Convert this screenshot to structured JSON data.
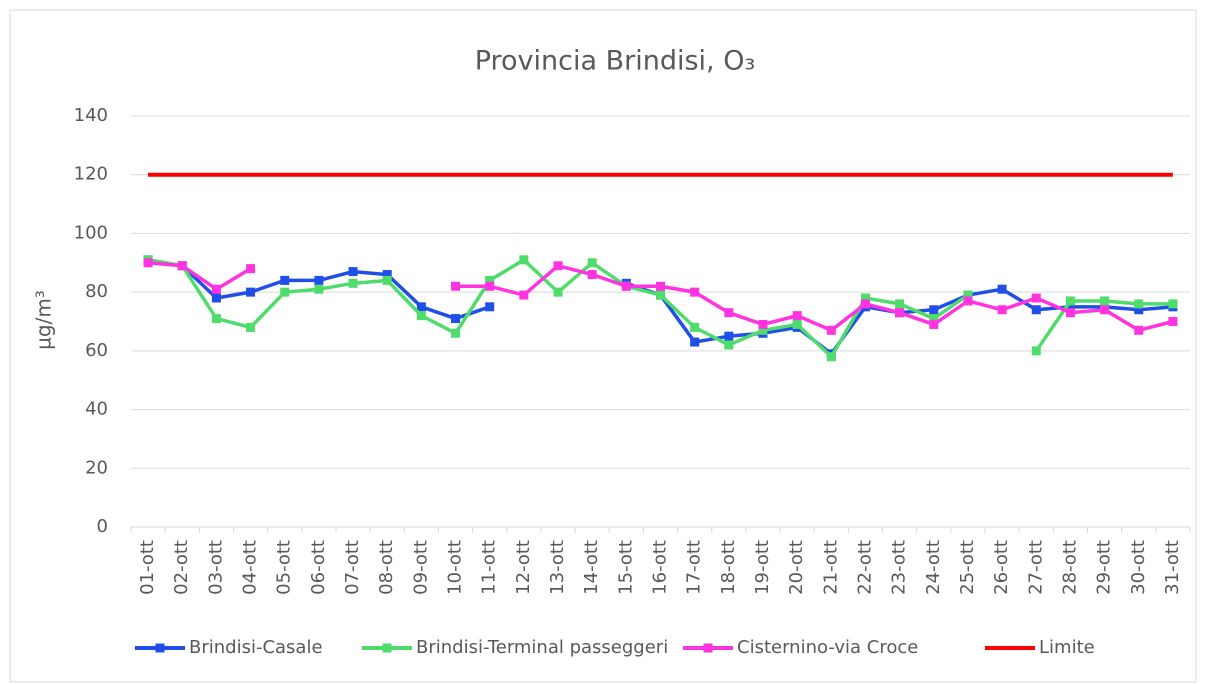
{
  "chart_data": {
    "type": "line",
    "title": "Provincia Brindisi, O₃",
    "y_label": "µg/m³",
    "categories": [
      "01-ott",
      "02-ott",
      "03-ott",
      "04-ott",
      "05-ott",
      "06-ott",
      "07-ott",
      "08-ott",
      "09-ott",
      "10-ott",
      "11-ott",
      "12-ott",
      "13-ott",
      "14-ott",
      "15-ott",
      "16-ott",
      "17-ott",
      "18-ott",
      "19-ott",
      "20-ott",
      "21-ott",
      "22-ott",
      "23-ott",
      "24-ott",
      "25-ott",
      "26-ott",
      "27-ott",
      "28-ott",
      "29-ott",
      "30-ott",
      "31-ott"
    ],
    "series": [
      {
        "name": "Brindisi-Casale",
        "color": "#1f4fe8",
        "marker": "square",
        "values": [
          91,
          89,
          78,
          80,
          84,
          84,
          87,
          86,
          75,
          71,
          75,
          null,
          null,
          null,
          83,
          79,
          63,
          65,
          66,
          68,
          59,
          75,
          73,
          74,
          79,
          81,
          74,
          75,
          75,
          74,
          75
        ]
      },
      {
        "name": "Brindisi-Terminal passeggeri",
        "color": "#4fdc6a",
        "marker": "square",
        "values": [
          91,
          89,
          71,
          68,
          80,
          81,
          83,
          84,
          72,
          66,
          84,
          91,
          80,
          90,
          82,
          79,
          68,
          62,
          67,
          69,
          58,
          78,
          76,
          71,
          79,
          null,
          60,
          77,
          77,
          76,
          76
        ]
      },
      {
        "name": "Cisternino-via Croce",
        "color": "#ff33e0",
        "marker": "square",
        "values": [
          90,
          89,
          81,
          88,
          null,
          null,
          null,
          null,
          null,
          82,
          82,
          79,
          89,
          86,
          82,
          82,
          80,
          73,
          69,
          72,
          67,
          76,
          73,
          69,
          77,
          74,
          78,
          73,
          74,
          67,
          70
        ]
      },
      {
        "name": "Limite",
        "color": "#ff0000",
        "marker": "none",
        "values": [
          120,
          120,
          120,
          120,
          120,
          120,
          120,
          120,
          120,
          120,
          120,
          120,
          120,
          120,
          120,
          120,
          120,
          120,
          120,
          120,
          120,
          120,
          120,
          120,
          120,
          120,
          120,
          120,
          120,
          120,
          120
        ]
      }
    ],
    "ylim": [
      0,
      140
    ],
    "yticks": [
      0,
      20,
      40,
      60,
      80,
      100,
      120,
      140
    ],
    "grid": true,
    "legend": "bottom"
  }
}
